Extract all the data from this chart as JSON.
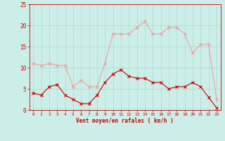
{
  "x": [
    0,
    1,
    2,
    3,
    4,
    5,
    6,
    7,
    8,
    9,
    10,
    11,
    12,
    13,
    14,
    15,
    16,
    17,
    18,
    19,
    20,
    21,
    22,
    23
  ],
  "rafales": [
    11,
    10.5,
    11,
    10.5,
    10.5,
    5.5,
    7,
    5.5,
    5.5,
    11,
    18,
    18,
    18,
    19.5,
    21,
    18,
    18,
    19.5,
    19.5,
    18,
    13.5,
    15.5,
    15.5,
    2.5
  ],
  "moyen": [
    4,
    3.5,
    5.5,
    6,
    3.5,
    2.5,
    1.5,
    1.5,
    3.5,
    6.5,
    8.5,
    9.5,
    8,
    7.5,
    7.5,
    6.5,
    6.5,
    5,
    5.5,
    5.5,
    6.5,
    5.5,
    3,
    0.5
  ],
  "xlabel": "Vent moyen/en rafales ( km/h )",
  "ylim": [
    0,
    25
  ],
  "xlim": [
    -0.5,
    23.5
  ],
  "yticks": [
    0,
    5,
    10,
    15,
    20,
    25
  ],
  "xticks": [
    0,
    1,
    2,
    3,
    4,
    5,
    6,
    7,
    8,
    9,
    10,
    11,
    12,
    13,
    14,
    15,
    16,
    17,
    18,
    19,
    20,
    21,
    22,
    23
  ],
  "bg_color": "#cceee8",
  "grid_color": "#aad8d2",
  "line_rafales_color": "#f0a0a0",
  "line_moyen_color": "#cc0000",
  "tick_label_color": "#cc0000",
  "xlabel_color": "#cc0000",
  "spine_color": "#cc0000"
}
